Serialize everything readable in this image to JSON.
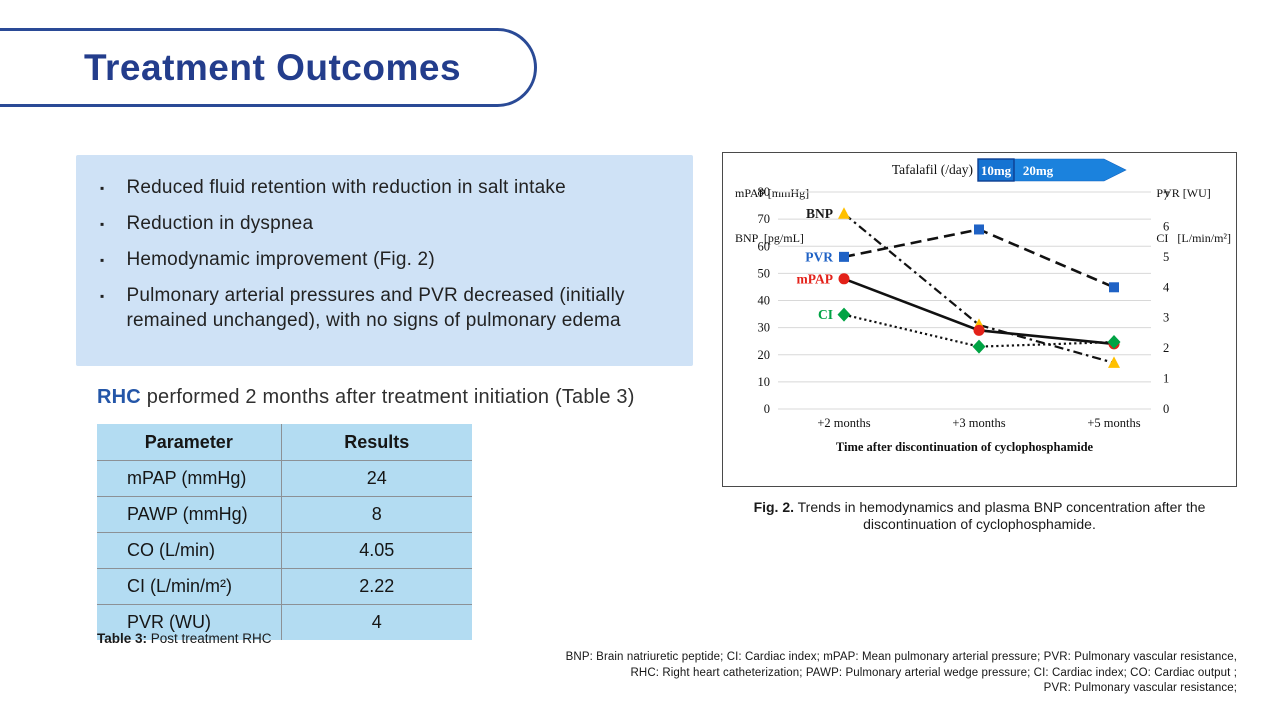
{
  "slide": {
    "title": "Treatment Outcomes",
    "bullets": [
      "Reduced fluid retention with reduction in salt intake",
      "Reduction in dyspnea",
      "Hemodynamic improvement (Fig. 2)",
      "Pulmonary arterial pressures and PVR decreased (initially remained unchanged), with no signs of pulmonary edema"
    ],
    "rhc_heading": {
      "highlight": "RHC",
      "rest": " performed 2 months after treatment initiation (Table 3)"
    },
    "table": {
      "headers": [
        "Parameter",
        "Results"
      ],
      "rows": [
        [
          "mPAP (mmHg)",
          "24"
        ],
        [
          "PAWP (mmHg)",
          "8"
        ],
        [
          "CO (L/min)",
          "4.05"
        ],
        [
          "CI (L/min/m²)",
          "2.22"
        ],
        [
          "PVR (WU)",
          "4"
        ]
      ],
      "caption_label": "Table 3:",
      "caption_text": " Post treatment RHC"
    },
    "figure": {
      "caption_label": "Fig. 2.",
      "caption_text": " Trends in hemodynamics and plasma BNP concentration after the discontinuation of cyclophosphamide."
    },
    "footnote_lines": [
      "BNP: Brain natriuretic peptide; CI: Cardiac index; mPAP: Mean pulmonary arterial pressure; PVR: Pulmonary vascular resistance,",
      "RHC: Right heart catheterization; PAWP: Pulmonary arterial wedge pressure; CI: Cardiac index; CO: Cardiac output ;",
      "PVR: Pulmonary vascular resistance;"
    ]
  },
  "chart_data": {
    "type": "line",
    "title": "",
    "x_categories": [
      "+2 months",
      "+3 months",
      "+5 months"
    ],
    "xlabel": "Time after discontinuation of cyclophosphamide",
    "left_axis": {
      "label_line1": "mPAP [mmHg]",
      "label_line2": "BNP  [pg/mL]",
      "ticks": [
        80,
        70,
        60,
        50,
        40,
        30,
        20,
        10,
        0
      ],
      "range": [
        0,
        80
      ]
    },
    "right_axis": {
      "label_line1": "PVR [WU]",
      "label_line2": "CI   [L/min/m²]",
      "ticks": [
        7,
        6,
        5,
        4,
        3,
        2,
        1,
        0
      ],
      "range": [
        0,
        7
      ]
    },
    "annotation": {
      "label": "Tafalafil (/day)",
      "segments": [
        "10mg",
        "20mg"
      ],
      "arrow_color": "#1b82dd",
      "segment_border_color": "#0d3e91"
    },
    "grid": true,
    "legend_position": "inline-labels",
    "series": [
      {
        "name": "BNP",
        "axis": "left",
        "values": [
          72,
          31,
          17
        ],
        "marker": "triangle",
        "marker_color": "#FFC000",
        "label_color": "#1a1a1a",
        "line_style": "dashdot"
      },
      {
        "name": "PVR",
        "axis": "right",
        "values": [
          5,
          5.9,
          4
        ],
        "marker": "square",
        "marker_color": "#1f62c5",
        "label_color": "#1f62c5",
        "line_style": "dashed"
      },
      {
        "name": "mPAP",
        "axis": "left",
        "values": [
          48,
          29,
          24
        ],
        "marker": "circle",
        "marker_color": "#e32119",
        "label_color": "#e32119",
        "line_style": "solid"
      },
      {
        "name": "CI",
        "axis": "right",
        "values": [
          3.1,
          2.05,
          2.2
        ],
        "marker": "diamond",
        "marker_color": "#00a344",
        "label_color": "#00a344",
        "line_style": "dotted"
      }
    ]
  },
  "colors": {
    "title_navy": "#233d8c",
    "panel_blue": "#cfe2f6",
    "table_blue": "#b3dcf2",
    "accent_blue": "#2456a8",
    "arrow_blue": "#1b82dd"
  }
}
